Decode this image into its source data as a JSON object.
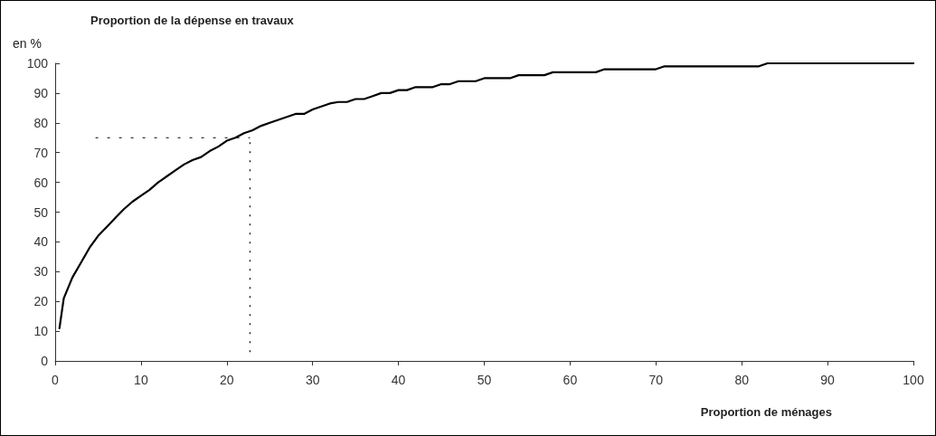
{
  "chart_data": {
    "type": "line",
    "title": "Proportion de la dépense en travaux",
    "ylabel": "en %",
    "xlabel": "Proportion de ménages",
    "x": [
      0.5,
      1,
      2,
      3,
      4,
      5,
      6,
      7,
      8,
      9,
      10,
      11,
      12,
      12.5,
      13,
      14,
      15,
      16,
      17,
      18,
      19,
      20,
      21,
      22,
      23,
      24,
      25,
      26,
      27,
      28,
      29,
      30,
      31,
      32,
      33,
      34,
      35,
      36,
      37,
      38,
      39,
      40,
      41,
      42,
      44,
      45,
      46,
      47,
      49,
      50,
      53,
      54,
      57,
      58,
      63,
      64,
      70,
      71,
      82,
      83,
      100
    ],
    "series": [
      {
        "color": "#000000",
        "values": [
          11,
          21,
          28,
          33,
          38,
          42,
          45,
          48,
          51,
          53.5,
          55.5,
          57.5,
          60,
          61,
          62,
          64,
          66,
          67.5,
          68.5,
          70.5,
          72,
          74,
          75,
          76.5,
          77.5,
          79,
          80,
          81,
          82,
          83,
          83,
          84.5,
          85.5,
          86.5,
          87,
          87,
          88,
          88,
          89,
          90,
          90,
          91,
          91,
          92,
          92,
          93,
          93,
          94,
          94,
          95,
          95,
          96,
          96,
          97,
          97,
          98,
          98,
          99,
          99,
          100,
          100
        ]
      }
    ],
    "xlim": [
      0,
      100
    ],
    "xticks": [
      0,
      10,
      20,
      30,
      40,
      50,
      60,
      70,
      80,
      90,
      100
    ],
    "ylim": [
      0,
      100
    ],
    "yticks": [
      0,
      10,
      20,
      30,
      40,
      50,
      60,
      70,
      80,
      90,
      100
    ],
    "grid": false,
    "marker": "none",
    "line_style": "solid",
    "ref_lines": [
      {
        "axis": "y",
        "value": 75,
        "label": null,
        "line_style": "dashed"
      },
      {
        "axis": "x",
        "value": 22.7,
        "label": null,
        "line_style": "dotted"
      }
    ]
  }
}
